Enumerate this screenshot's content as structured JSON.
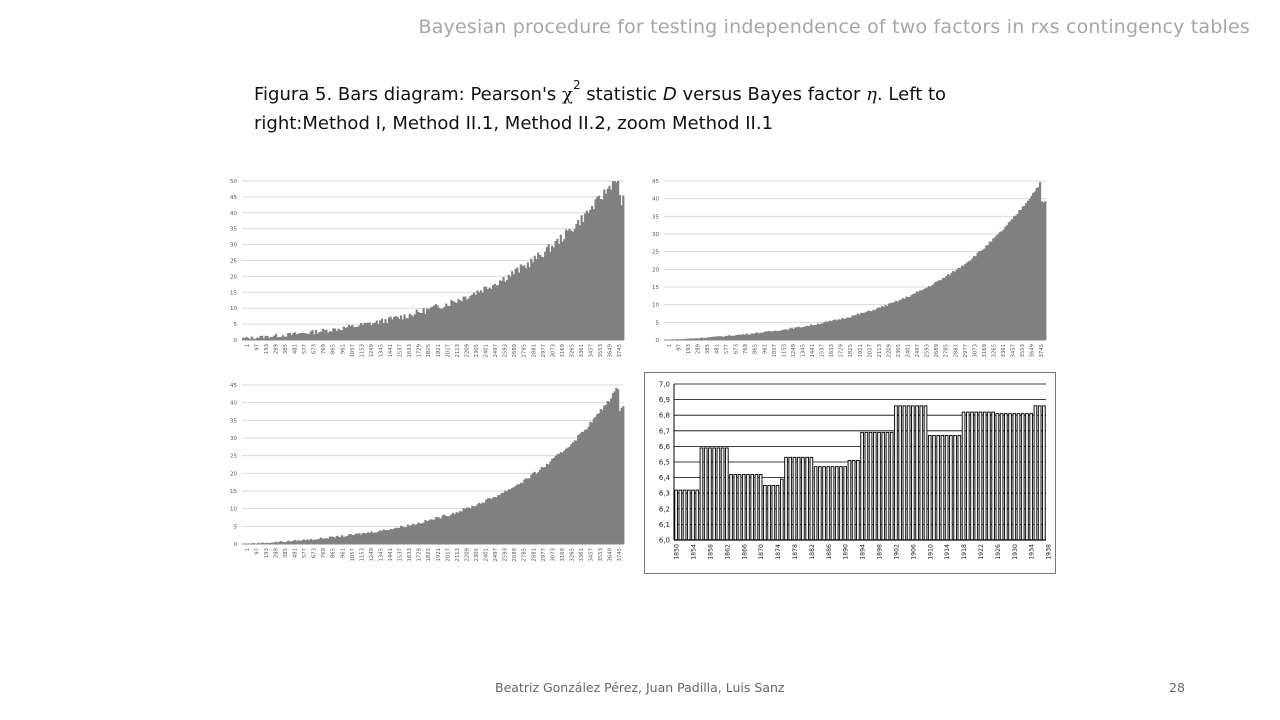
{
  "header": "Bayesian procedure for testing independence of two factors in rxs contingency tables",
  "caption": {
    "prefix": "Figura 5. Bars diagram: Pearson's ",
    "chi": "χ",
    "chi_exp": "2",
    "mid": " statistic ",
    "stat": "D",
    "mid2": " versus Bayes factor ",
    "eta": "η",
    "suffix": ". Left to right:Method I, Method II.1, Method II.2, zoom Method II.1"
  },
  "footer": {
    "authors": "Beatriz González Pérez, Juan Padilla, Luis Sanz",
    "page": "28"
  },
  "chart_data": [
    {
      "type": "bar",
      "ylim": [
        0,
        50
      ],
      "yticks": [
        0,
        5,
        10,
        15,
        20,
        25,
        30,
        35,
        40,
        45,
        50
      ],
      "xticks": [
        "1",
        "97",
        "193",
        "289",
        "385",
        "481",
        "577",
        "673",
        "769",
        "865",
        "961",
        "1057",
        "1153",
        "1249",
        "1345",
        "1441",
        "1537",
        "1633",
        "1729",
        "1825",
        "1921",
        "2017",
        "2113",
        "2209",
        "2305",
        "2401",
        "2497",
        "2593",
        "2689",
        "2785",
        "2881",
        "2977",
        "3073",
        "3169",
        "3265",
        "3361",
        "3457",
        "3553",
        "3649",
        "3745"
      ],
      "grid": true,
      "bar_color": "#808080",
      "curve": {
        "start": 0.5,
        "mid": 10,
        "end": 45,
        "noise": 2.5
      }
    },
    {
      "type": "bar",
      "ylim": [
        0,
        45
      ],
      "yticks": [
        0,
        5,
        10,
        15,
        20,
        25,
        30,
        35,
        40,
        45
      ],
      "xticks": [
        "1",
        "97",
        "193",
        "289",
        "385",
        "481",
        "577",
        "673",
        "769",
        "865",
        "961",
        "1057",
        "1153",
        "1249",
        "1345",
        "1441",
        "1537",
        "1633",
        "1729",
        "1825",
        "1921",
        "2017",
        "2113",
        "2209",
        "2305",
        "2401",
        "2497",
        "2593",
        "2689",
        "2785",
        "2881",
        "2977",
        "3073",
        "3169",
        "3265",
        "3361",
        "3457",
        "3553",
        "3649",
        "3745"
      ],
      "grid": true,
      "bar_color": "#808080",
      "curve": {
        "start": 0,
        "mid": 7,
        "end": 40,
        "noise": 0.6
      }
    },
    {
      "type": "bar",
      "ylim": [
        0,
        45
      ],
      "yticks": [
        0,
        5,
        10,
        15,
        20,
        25,
        30,
        35,
        40,
        45
      ],
      "xticks": [
        "1",
        "97",
        "193",
        "289",
        "385",
        "481",
        "577",
        "673",
        "769",
        "865",
        "961",
        "1057",
        "1153",
        "1249",
        "1345",
        "1441",
        "1537",
        "1633",
        "1729",
        "1825",
        "1921",
        "2017",
        "2113",
        "2209",
        "2305",
        "2401",
        "2497",
        "2593",
        "2689",
        "2785",
        "2881",
        "2977",
        "3073",
        "3169",
        "3265",
        "3361",
        "3457",
        "3553",
        "3649",
        "3745"
      ],
      "grid": true,
      "bar_color": "#808080",
      "curve": {
        "start": 0,
        "mid": 7,
        "end": 40,
        "noise": 0.9
      }
    },
    {
      "type": "bar",
      "ylim": [
        6.0,
        7.0
      ],
      "yticks": [
        "6,0",
        "6,1",
        "6,2",
        "6,3",
        "6,4",
        "6,5",
        "6,6",
        "6,7",
        "6,8",
        "6,9",
        "7,0"
      ],
      "xticks": [
        "1850",
        "1854",
        "1858",
        "1862",
        "1866",
        "1870",
        "1874",
        "1878",
        "1882",
        "1886",
        "1890",
        "1894",
        "1898",
        "1902",
        "1906",
        "1910",
        "1914",
        "1918",
        "1922",
        "1926",
        "1930",
        "1934",
        "1938"
      ],
      "grid": true,
      "bar_color": "#f2f2f2",
      "bar_edge": "#000000",
      "groups": [
        {
          "n": 6,
          "value": 6.32
        },
        {
          "n": 7,
          "value": 6.59
        },
        {
          "n": 8,
          "value": 6.42
        },
        {
          "n": 4,
          "value": 6.35
        },
        {
          "n": 1,
          "value": 6.39
        },
        {
          "n": 7,
          "value": 6.53
        },
        {
          "n": 8,
          "value": 6.47
        },
        {
          "n": 3,
          "value": 6.51
        },
        {
          "n": 8,
          "value": 6.69
        },
        {
          "n": 8,
          "value": 6.86
        },
        {
          "n": 8,
          "value": 6.67
        },
        {
          "n": 8,
          "value": 6.82
        },
        {
          "n": 9,
          "value": 6.81
        },
        {
          "n": 3,
          "value": 6.86
        }
      ]
    }
  ]
}
